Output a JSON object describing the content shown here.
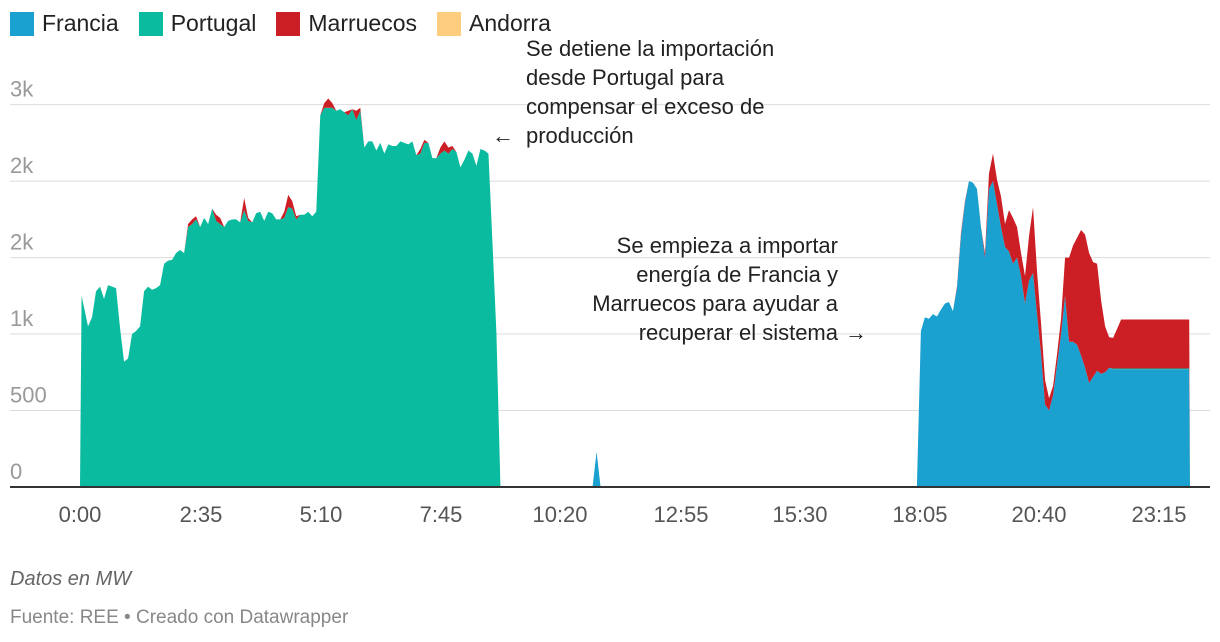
{
  "chart_data": {
    "type": "area",
    "stacked": true,
    "legend": {
      "placement": "top-left"
    },
    "x_ticks": [
      "0:00",
      "2:35",
      "5:10",
      "7:45",
      "10:20",
      "12:55",
      "15:30",
      "18:05",
      "20:40",
      "23:15"
    ],
    "y_ticks": [
      {
        "value": 0,
        "label": "0"
      },
      {
        "value": 500,
        "label": "500"
      },
      {
        "value": 1000,
        "label": "1k"
      },
      {
        "value": 1500,
        "label": "2k"
      },
      {
        "value": 2000,
        "label": "2k"
      },
      {
        "value": 2500,
        "label": "3k"
      }
    ],
    "ylim": [
      0,
      2550
    ],
    "grid": true,
    "series": [
      {
        "name": "Francia",
        "color": "#1aa1cf",
        "points": [
          [
            1045,
            0
          ],
          [
            1050,
            1020
          ],
          [
            1055,
            1110
          ],
          [
            1060,
            1100
          ],
          [
            1065,
            1130
          ],
          [
            1070,
            1115
          ],
          [
            1075,
            1160
          ],
          [
            1080,
            1200
          ],
          [
            1085,
            1210
          ],
          [
            1090,
            1150
          ],
          [
            1095,
            1300
          ],
          [
            1100,
            1640
          ],
          [
            1105,
            1860
          ],
          [
            1110,
            2000
          ],
          [
            1115,
            1990
          ],
          [
            1120,
            1950
          ],
          [
            1125,
            1700
          ],
          [
            1130,
            1500
          ],
          [
            1135,
            1950
          ],
          [
            1140,
            2000
          ],
          [
            1145,
            1850
          ],
          [
            1150,
            1700
          ],
          [
            1155,
            1570
          ],
          [
            1160,
            1540
          ],
          [
            1165,
            1460
          ],
          [
            1170,
            1500
          ],
          [
            1175,
            1380
          ],
          [
            1180,
            1200
          ],
          [
            1185,
            1350
          ],
          [
            1190,
            1400
          ],
          [
            1195,
            1130
          ],
          [
            1200,
            870
          ],
          [
            1205,
            540
          ],
          [
            1210,
            500
          ],
          [
            1215,
            600
          ],
          [
            1220,
            800
          ],
          [
            1225,
            1000
          ],
          [
            1230,
            1250
          ],
          [
            1235,
            950
          ],
          [
            1240,
            950
          ],
          [
            1245,
            930
          ],
          [
            1250,
            860
          ],
          [
            1255,
            780
          ],
          [
            1260,
            680
          ],
          [
            1265,
            720
          ],
          [
            1270,
            760
          ],
          [
            1275,
            740
          ],
          [
            1280,
            750
          ],
          [
            1285,
            780
          ],
          [
            1290,
            770
          ],
          [
            1300,
            770
          ],
          [
            1310,
            770
          ],
          [
            1320,
            770
          ],
          [
            1330,
            770
          ],
          [
            1340,
            770
          ],
          [
            1350,
            770
          ],
          [
            1360,
            770
          ],
          [
            1370,
            770
          ],
          [
            1380,
            770
          ],
          [
            1385,
            770
          ],
          [
            1386,
            0
          ]
        ]
      },
      {
        "name": "Portugal",
        "color": "#0bbb9f",
        "points": [
          [
            0,
            0
          ],
          [
            2,
            1250
          ],
          [
            10,
            1050
          ],
          [
            15,
            1110
          ],
          [
            20,
            1280
          ],
          [
            25,
            1310
          ],
          [
            30,
            1230
          ],
          [
            35,
            1320
          ],
          [
            40,
            1310
          ],
          [
            45,
            1300
          ],
          [
            50,
            1040
          ],
          [
            55,
            820
          ],
          [
            60,
            840
          ],
          [
            65,
            1000
          ],
          [
            70,
            1020
          ],
          [
            75,
            1050
          ],
          [
            80,
            1280
          ],
          [
            85,
            1310
          ],
          [
            90,
            1290
          ],
          [
            95,
            1300
          ],
          [
            100,
            1320
          ],
          [
            105,
            1460
          ],
          [
            110,
            1480
          ],
          [
            115,
            1485
          ],
          [
            120,
            1530
          ],
          [
            125,
            1550
          ],
          [
            130,
            1530
          ],
          [
            135,
            1700
          ],
          [
            140,
            1720
          ],
          [
            145,
            1750
          ],
          [
            150,
            1700
          ],
          [
            155,
            1760
          ],
          [
            160,
            1720
          ],
          [
            165,
            1820
          ],
          [
            170,
            1740
          ],
          [
            175,
            1720
          ],
          [
            180,
            1700
          ],
          [
            185,
            1740
          ],
          [
            190,
            1750
          ],
          [
            195,
            1750
          ],
          [
            200,
            1730
          ],
          [
            205,
            1810
          ],
          [
            210,
            1740
          ],
          [
            215,
            1730
          ],
          [
            220,
            1790
          ],
          [
            225,
            1800
          ],
          [
            230,
            1740
          ],
          [
            235,
            1800
          ],
          [
            240,
            1790
          ],
          [
            245,
            1750
          ],
          [
            250,
            1750
          ],
          [
            255,
            1760
          ],
          [
            260,
            1830
          ],
          [
            265,
            1820
          ],
          [
            270,
            1750
          ],
          [
            275,
            1780
          ],
          [
            280,
            1780
          ],
          [
            285,
            1800
          ],
          [
            290,
            1770
          ],
          [
            295,
            1800
          ],
          [
            300,
            2430
          ],
          [
            305,
            2480
          ],
          [
            310,
            2480
          ],
          [
            315,
            2480
          ],
          [
            320,
            2460
          ],
          [
            325,
            2470
          ],
          [
            330,
            2450
          ],
          [
            335,
            2430
          ],
          [
            340,
            2470
          ],
          [
            345,
            2400
          ],
          [
            350,
            2460
          ],
          [
            355,
            2220
          ],
          [
            360,
            2260
          ],
          [
            365,
            2260
          ],
          [
            370,
            2200
          ],
          [
            375,
            2250
          ],
          [
            380,
            2180
          ],
          [
            385,
            2240
          ],
          [
            390,
            2230
          ],
          [
            395,
            2230
          ],
          [
            400,
            2260
          ],
          [
            405,
            2250
          ],
          [
            410,
            2240
          ],
          [
            415,
            2260
          ],
          [
            420,
            2170
          ],
          [
            425,
            2180
          ],
          [
            430,
            2250
          ],
          [
            435,
            2250
          ],
          [
            440,
            2150
          ],
          [
            445,
            2150
          ],
          [
            450,
            2180
          ],
          [
            455,
            2200
          ],
          [
            460,
            2180
          ],
          [
            465,
            2210
          ],
          [
            470,
            2190
          ],
          [
            475,
            2090
          ],
          [
            480,
            2140
          ],
          [
            485,
            2200
          ],
          [
            490,
            2180
          ],
          [
            495,
            2100
          ],
          [
            500,
            2210
          ],
          [
            505,
            2200
          ],
          [
            510,
            2180
          ],
          [
            515,
            1600
          ],
          [
            520,
            1000
          ],
          [
            525,
            0
          ],
          [
            1286,
            0
          ],
          [
            1290,
            5
          ],
          [
            1300,
            5
          ],
          [
            1310,
            5
          ],
          [
            1320,
            5
          ],
          [
            1330,
            5
          ],
          [
            1340,
            5
          ],
          [
            1350,
            5
          ],
          [
            1360,
            5
          ],
          [
            1370,
            5
          ],
          [
            1380,
            5
          ],
          [
            1385,
            5
          ],
          [
            1386,
            0
          ]
        ]
      },
      {
        "name": "Marruecos",
        "color": "#cc1e25",
        "points": [
          [
            0,
            0
          ],
          [
            130,
            0
          ],
          [
            135,
            20
          ],
          [
            140,
            30
          ],
          [
            145,
            20
          ],
          [
            150,
            0
          ],
          [
            165,
            0
          ],
          [
            170,
            40
          ],
          [
            175,
            40
          ],
          [
            180,
            0
          ],
          [
            200,
            0
          ],
          [
            205,
            80
          ],
          [
            210,
            20
          ],
          [
            215,
            0
          ],
          [
            250,
            0
          ],
          [
            255,
            40
          ],
          [
            260,
            80
          ],
          [
            265,
            50
          ],
          [
            270,
            20
          ],
          [
            275,
            0
          ],
          [
            300,
            0
          ],
          [
            305,
            30
          ],
          [
            310,
            60
          ],
          [
            315,
            30
          ],
          [
            320,
            0
          ],
          [
            330,
            0
          ],
          [
            335,
            30
          ],
          [
            340,
            0
          ],
          [
            345,
            60
          ],
          [
            350,
            20
          ],
          [
            355,
            0
          ],
          [
            420,
            0
          ],
          [
            425,
            30
          ],
          [
            430,
            20
          ],
          [
            435,
            0
          ],
          [
            445,
            0
          ],
          [
            450,
            40
          ],
          [
            455,
            60
          ],
          [
            460,
            40
          ],
          [
            465,
            20
          ],
          [
            470,
            0
          ],
          [
            1045,
            0
          ],
          [
            1090,
            0
          ],
          [
            1095,
            10
          ],
          [
            1100,
            20
          ],
          [
            1105,
            10
          ],
          [
            1110,
            0
          ],
          [
            1125,
            0
          ],
          [
            1130,
            30
          ],
          [
            1135,
            100
          ],
          [
            1140,
            180
          ],
          [
            1145,
            160
          ],
          [
            1150,
            200
          ],
          [
            1155,
            150
          ],
          [
            1160,
            270
          ],
          [
            1165,
            300
          ],
          [
            1170,
            200
          ],
          [
            1175,
            150
          ],
          [
            1180,
            180
          ],
          [
            1185,
            290
          ],
          [
            1190,
            430
          ],
          [
            1195,
            280
          ],
          [
            1200,
            200
          ],
          [
            1205,
            160
          ],
          [
            1210,
            80
          ],
          [
            1215,
            60
          ],
          [
            1220,
            70
          ],
          [
            1225,
            100
          ],
          [
            1230,
            250
          ],
          [
            1235,
            550
          ],
          [
            1240,
            630
          ],
          [
            1245,
            700
          ],
          [
            1250,
            820
          ],
          [
            1255,
            870
          ],
          [
            1260,
            850
          ],
          [
            1265,
            750
          ],
          [
            1270,
            700
          ],
          [
            1275,
            480
          ],
          [
            1280,
            300
          ],
          [
            1285,
            200
          ],
          [
            1290,
            200
          ],
          [
            1295,
            260
          ],
          [
            1300,
            320
          ],
          [
            1310,
            320
          ],
          [
            1320,
            320
          ],
          [
            1330,
            320
          ],
          [
            1340,
            320
          ],
          [
            1350,
            320
          ],
          [
            1360,
            320
          ],
          [
            1370,
            320
          ],
          [
            1380,
            320
          ],
          [
            1385,
            320
          ],
          [
            1386,
            0
          ]
        ]
      },
      {
        "name": "Andorra",
        "color": "#fecd7d",
        "points": []
      },
      {
        "name": "Francia (spike)",
        "color": "#1aa1cf",
        "points": [
          [
            640,
            0
          ],
          [
            645,
            230
          ],
          [
            650,
            0
          ]
        ]
      }
    ],
    "x_range": [
      0,
      1386
    ]
  },
  "legend_items": [
    {
      "label": "Francia",
      "color": "#1aa1cf"
    },
    {
      "label": "Portugal",
      "color": "#0bbb9f"
    },
    {
      "label": "Marruecos",
      "color": "#cc1e25"
    },
    {
      "label": "Andorra",
      "color": "#fecd7d"
    }
  ],
  "annotations": {
    "top": [
      "Se detiene la importación",
      "desde Portugal para",
      "compensar el exceso de",
      "producción"
    ],
    "top_arrow": "←",
    "mid": [
      "Se empieza a importar",
      "energía de Francia y",
      "Marruecos para ayudar a",
      "recuperar el sistema"
    ],
    "mid_arrow": "→"
  },
  "footer": {
    "note": "Datos en MW",
    "source": "Fuente: REE • Creado con Datawrapper"
  }
}
